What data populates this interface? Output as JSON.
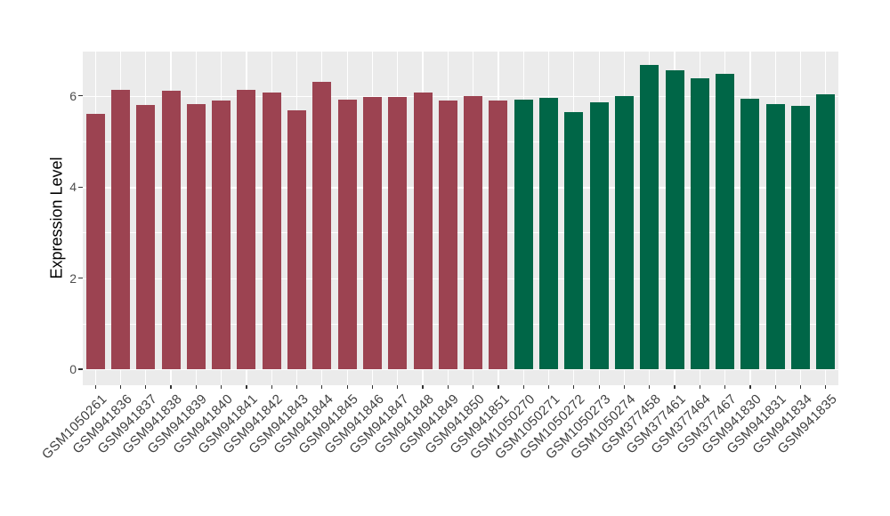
{
  "chart_data": {
    "type": "bar",
    "title": "",
    "xlabel": "",
    "ylabel": "Expression Level",
    "ylim": [
      0,
      7
    ],
    "yticks": [
      "0",
      "2",
      "4",
      "6"
    ],
    "ytick_values": [
      0,
      2,
      4,
      6
    ],
    "grid": "horizontal major at 0/2/4/6 and minor at 1/3/5, white on gray panel; vertical white line at each category",
    "legend_position": "none",
    "panel_background": "#EBEBEB",
    "gridline_color": "#FFFFFF",
    "tick_label_color": "#4D4D4D",
    "group_colors": {
      "maroon": "#9C4351",
      "green": "#006647"
    },
    "categories": [
      "GSM1050261",
      "GSM941836",
      "GSM941837",
      "GSM941838",
      "GSM941839",
      "GSM941840",
      "GSM941841",
      "GSM941842",
      "GSM941843",
      "GSM941844",
      "GSM941845",
      "GSM941846",
      "GSM941847",
      "GSM941848",
      "GSM941849",
      "GSM941850",
      "GSM941851",
      "GSM1050270",
      "GSM1050271",
      "GSM1050272",
      "GSM1050273",
      "GSM1050274",
      "GSM377458",
      "GSM377461",
      "GSM377464",
      "GSM377467",
      "GSM941830",
      "GSM941831",
      "GSM941834",
      "GSM941835"
    ],
    "values": [
      5.6,
      6.14,
      5.8,
      6.11,
      5.82,
      5.9,
      6.14,
      6.07,
      5.68,
      6.3,
      5.91,
      5.97,
      5.98,
      6.08,
      5.9,
      6.0,
      5.9,
      5.92,
      5.96,
      5.65,
      5.86,
      5.99,
      6.67,
      6.56,
      6.38,
      6.49,
      5.93,
      5.82,
      5.78,
      6.04
    ],
    "groups": [
      "maroon",
      "maroon",
      "maroon",
      "maroon",
      "maroon",
      "maroon",
      "maroon",
      "maroon",
      "maroon",
      "maroon",
      "maroon",
      "maroon",
      "maroon",
      "maroon",
      "maroon",
      "maroon",
      "maroon",
      "green",
      "green",
      "green",
      "green",
      "green",
      "green",
      "green",
      "green",
      "green",
      "green",
      "green",
      "green",
      "green"
    ]
  }
}
